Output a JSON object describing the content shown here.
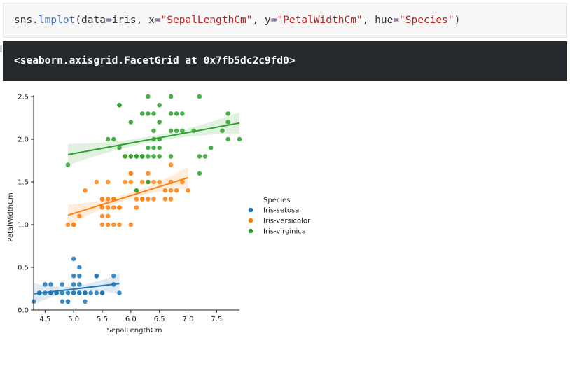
{
  "code_cell": {
    "parts": [
      {
        "text": "sns.",
        "color": "#333333"
      },
      {
        "text": "lmplot",
        "color": "#4a79b8"
      },
      {
        "text": "(data",
        "color": "#333333"
      },
      {
        "text": "=",
        "color": "#7a4e9b"
      },
      {
        "text": "iris, x",
        "color": "#333333"
      },
      {
        "text": "=",
        "color": "#7a4e9b"
      },
      {
        "text": "\"SepalLengthCm\"",
        "color": "#ba2121"
      },
      {
        "text": ", y",
        "color": "#333333"
      },
      {
        "text": "=",
        "color": "#7a4e9b"
      },
      {
        "text": "\"PetalWidthCm\"",
        "color": "#ba2121"
      },
      {
        "text": ", hue",
        "color": "#333333"
      },
      {
        "text": "=",
        "color": "#7a4e9b"
      },
      {
        "text": "\"Species\"",
        "color": "#ba2121"
      },
      {
        "text": ")",
        "color": "#333333"
      }
    ]
  },
  "output_cell": {
    "text": "<seaborn.axisgrid.FacetGrid at 0x7fb5dc2c9fd0>"
  },
  "chart_data": {
    "type": "scatter",
    "xlabel": "SepalLengthCm",
    "ylabel": "PetalWidthCm",
    "xlim": [
      4.3,
      7.9
    ],
    "ylim": [
      0.0,
      2.5
    ],
    "xticks": [
      {
        "value": 4.5,
        "label": "4.5"
      },
      {
        "value": 5.0,
        "label": "5.0"
      },
      {
        "value": 5.5,
        "label": "5.5"
      },
      {
        "value": 6.0,
        "label": "6.0"
      },
      {
        "value": 6.5,
        "label": "6.5"
      },
      {
        "value": 7.0,
        "label": "7.0"
      },
      {
        "value": 7.5,
        "label": "7.5"
      }
    ],
    "yticks": [
      {
        "value": 0.0,
        "label": "0.0"
      },
      {
        "value": 0.5,
        "label": "0.5"
      },
      {
        "value": 1.0,
        "label": "1.0"
      },
      {
        "value": 1.5,
        "label": "1.5"
      },
      {
        "value": 2.0,
        "label": "2.0"
      },
      {
        "value": 2.5,
        "label": "2.5"
      }
    ],
    "legend_title": "Species",
    "legend_position": "right",
    "series": [
      {
        "name": "Iris-setosa",
        "color": "#1f77b4",
        "points": [
          [
            4.3,
            0.1
          ],
          [
            4.4,
            0.2
          ],
          [
            4.4,
            0.2
          ],
          [
            4.5,
            0.3
          ],
          [
            4.6,
            0.2
          ],
          [
            4.6,
            0.3
          ],
          [
            4.7,
            0.2
          ],
          [
            4.8,
            0.2
          ],
          [
            4.8,
            0.1
          ],
          [
            4.8,
            0.3
          ],
          [
            4.9,
            0.2
          ],
          [
            4.9,
            0.1
          ],
          [
            5.0,
            0.2
          ],
          [
            5.0,
            0.4
          ],
          [
            5.0,
            0.6
          ],
          [
            5.0,
            0.3
          ],
          [
            5.1,
            0.2
          ],
          [
            5.1,
            0.4
          ],
          [
            5.1,
            0.5
          ],
          [
            5.1,
            0.3
          ],
          [
            5.2,
            0.2
          ],
          [
            5.2,
            0.1
          ],
          [
            5.3,
            0.2
          ],
          [
            5.4,
            0.4
          ],
          [
            5.4,
            0.2
          ],
          [
            5.5,
            0.2
          ],
          [
            5.7,
            0.4
          ],
          [
            5.7,
            0.3
          ],
          [
            5.8,
            0.2
          ],
          [
            4.6,
            0.2
          ],
          [
            4.7,
            0.2
          ],
          [
            5.0,
            0.2
          ],
          [
            4.9,
            0.1
          ],
          [
            5.1,
            0.2
          ],
          [
            5.4,
            0.4
          ],
          [
            5.2,
            0.2
          ],
          [
            5.5,
            0.2
          ],
          [
            4.5,
            0.2
          ]
        ],
        "fit": {
          "x0": 4.3,
          "y0": 0.19,
          "x1": 5.8,
          "y1": 0.31
        }
      },
      {
        "name": "Iris-versicolor",
        "color": "#ff7f0e",
        "points": [
          [
            4.9,
            1.0
          ],
          [
            5.0,
            1.0
          ],
          [
            5.0,
            1.0
          ],
          [
            5.1,
            1.1
          ],
          [
            5.2,
            1.4
          ],
          [
            5.4,
            1.5
          ],
          [
            5.5,
            1.3
          ],
          [
            5.5,
            1.0
          ],
          [
            5.5,
            1.1
          ],
          [
            5.5,
            1.2
          ],
          [
            5.6,
            1.3
          ],
          [
            5.6,
            1.5
          ],
          [
            5.6,
            1.1
          ],
          [
            5.7,
            1.3
          ],
          [
            5.7,
            1.2
          ],
          [
            5.7,
            1.0
          ],
          [
            5.8,
            1.0
          ],
          [
            5.8,
            1.2
          ],
          [
            5.9,
            1.5
          ],
          [
            5.9,
            1.8
          ],
          [
            6.0,
            1.0
          ],
          [
            6.0,
            1.5
          ],
          [
            6.0,
            1.6
          ],
          [
            6.1,
            1.4
          ],
          [
            6.1,
            1.3
          ],
          [
            6.1,
            1.2
          ],
          [
            6.2,
            1.5
          ],
          [
            6.2,
            1.3
          ],
          [
            6.3,
            1.5
          ],
          [
            6.3,
            1.6
          ],
          [
            6.3,
            1.3
          ],
          [
            6.4,
            1.5
          ],
          [
            6.4,
            1.3
          ],
          [
            6.5,
            1.5
          ],
          [
            6.6,
            1.3
          ],
          [
            6.6,
            1.4
          ],
          [
            6.7,
            1.4
          ],
          [
            6.7,
            1.5
          ],
          [
            6.7,
            1.7
          ],
          [
            6.7,
            1.3
          ],
          [
            6.8,
            1.4
          ],
          [
            6.9,
            1.5
          ],
          [
            7.0,
            1.4
          ],
          [
            5.6,
            1.2
          ],
          [
            5.7,
            1.3
          ],
          [
            6.2,
            1.3
          ],
          [
            5.8,
            1.2
          ],
          [
            5.5,
            1.3
          ],
          [
            5.6,
            1.0
          ],
          [
            6.0,
            1.6
          ]
        ],
        "fit": {
          "x0": 4.9,
          "y0": 1.11,
          "x1": 7.0,
          "y1": 1.55
        }
      },
      {
        "name": "Iris-virginica",
        "color": "#2ca02c",
        "points": [
          [
            4.9,
            1.7
          ],
          [
            5.6,
            2.0
          ],
          [
            5.7,
            2.0
          ],
          [
            5.8,
            2.4
          ],
          [
            5.8,
            1.9
          ],
          [
            5.8,
            2.4
          ],
          [
            5.9,
            1.8
          ],
          [
            6.0,
            1.8
          ],
          [
            6.1,
            1.8
          ],
          [
            6.2,
            1.8
          ],
          [
            6.3,
            2.3
          ],
          [
            6.3,
            1.8
          ],
          [
            6.3,
            2.5
          ],
          [
            6.4,
            2.0
          ],
          [
            6.4,
            2.3
          ],
          [
            6.4,
            2.1
          ],
          [
            6.4,
            1.9
          ],
          [
            6.5,
            2.0
          ],
          [
            6.5,
            2.2
          ],
          [
            6.5,
            1.8
          ],
          [
            6.7,
            2.5
          ],
          [
            6.7,
            2.3
          ],
          [
            6.7,
            1.8
          ],
          [
            6.7,
            2.1
          ],
          [
            6.8,
            2.3
          ],
          [
            6.8,
            2.1
          ],
          [
            6.9,
            2.3
          ],
          [
            7.1,
            2.1
          ],
          [
            7.2,
            2.5
          ],
          [
            7.2,
            1.8
          ],
          [
            7.3,
            1.8
          ],
          [
            7.4,
            1.9
          ],
          [
            7.6,
            2.1
          ],
          [
            7.7,
            2.3
          ],
          [
            7.7,
            2.0
          ],
          [
            7.7,
            2.2
          ],
          [
            7.9,
            2.0
          ],
          [
            6.0,
            1.8
          ],
          [
            6.1,
            1.8
          ],
          [
            6.2,
            1.8
          ],
          [
            6.5,
            1.9
          ],
          [
            6.5,
            2.4
          ],
          [
            6.9,
            2.1
          ],
          [
            6.3,
            1.5
          ],
          [
            6.1,
            1.4
          ],
          [
            7.2,
            1.6
          ],
          [
            6.4,
            1.8
          ],
          [
            6.0,
            2.2
          ],
          [
            6.3,
            1.9
          ],
          [
            6.2,
            2.3
          ]
        ],
        "fit": {
          "x0": 4.9,
          "y0": 1.82,
          "x1": 7.9,
          "y1": 2.19
        }
      }
    ]
  }
}
